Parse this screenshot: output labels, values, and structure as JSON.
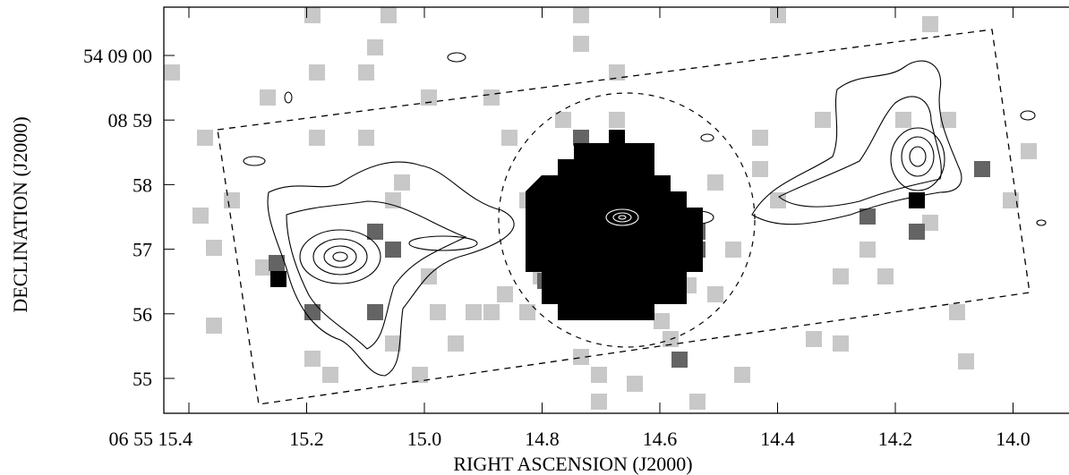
{
  "axes": {
    "x_label": "RIGHT ASCENSION (J2000)",
    "y_label": "DECLINATION (J2000)",
    "x_ticks": [
      "06 55 15.4",
      "15.2",
      "15.0",
      "14.8",
      "14.6",
      "14.4",
      "14.2",
      "14.0"
    ],
    "y_ticks": [
      "54 09 00",
      "08 59",
      "58",
      "57",
      "56",
      "55"
    ]
  }
}
